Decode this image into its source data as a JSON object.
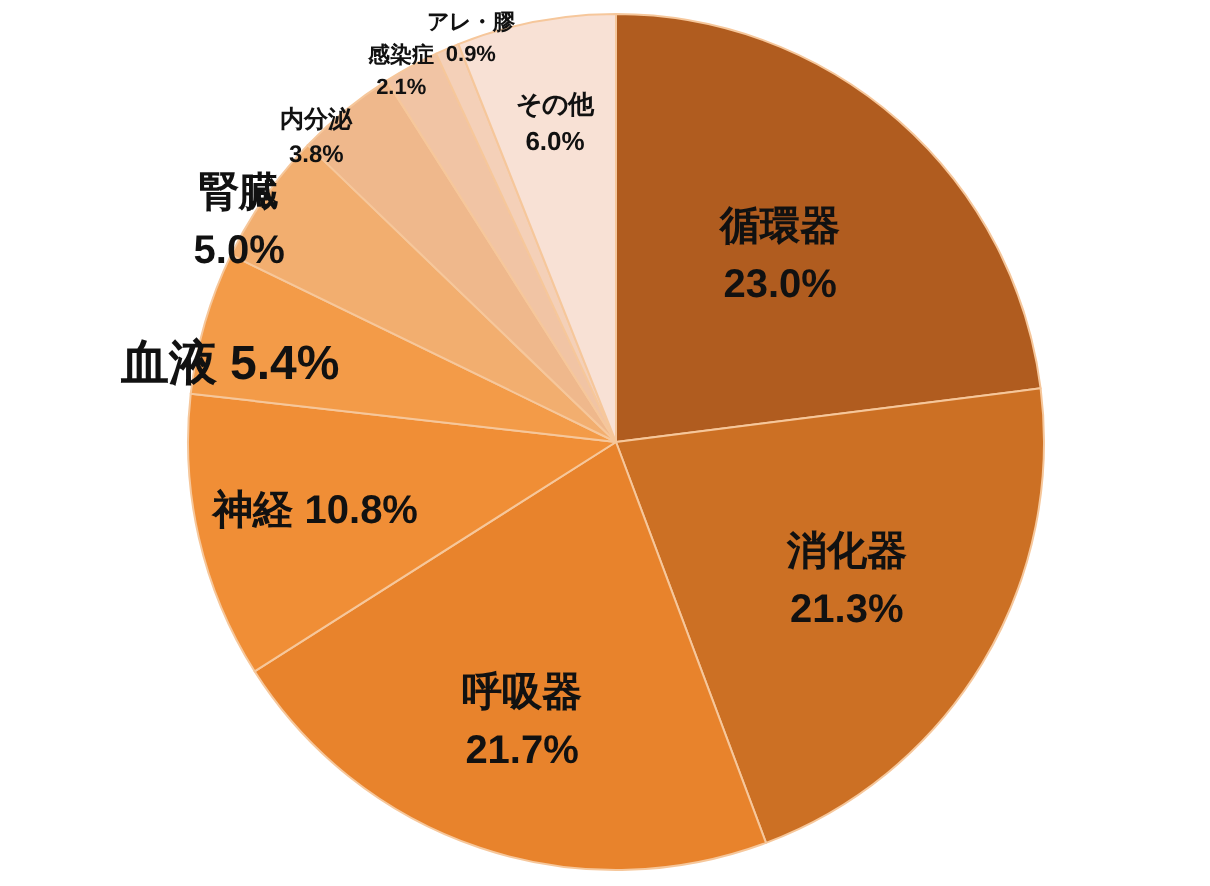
{
  "chart_data": {
    "type": "pie",
    "categories": [
      "循環器",
      "消化器",
      "呼吸器",
      "神経",
      "血液",
      "腎臓",
      "内分泌",
      "感染症",
      "アレ・膠",
      "その他"
    ],
    "values": [
      23.0,
      21.3,
      21.7,
      10.8,
      5.4,
      5.0,
      3.8,
      2.1,
      0.9,
      6.0
    ],
    "value_labels": [
      "23.0%",
      "21.3%",
      "21.7%",
      "10.8%",
      "5.4%",
      "5.0%",
      "3.8%",
      "2.1%",
      "0.9%",
      "6.0%"
    ],
    "colors": [
      "#b05c1f",
      "#cc7024",
      "#e8832c",
      "#f08e36",
      "#f39b48",
      "#f2ae6f",
      "#efb88c",
      "#f1c4a4",
      "#f4d0b8",
      "#f8e1d5"
    ]
  }
}
